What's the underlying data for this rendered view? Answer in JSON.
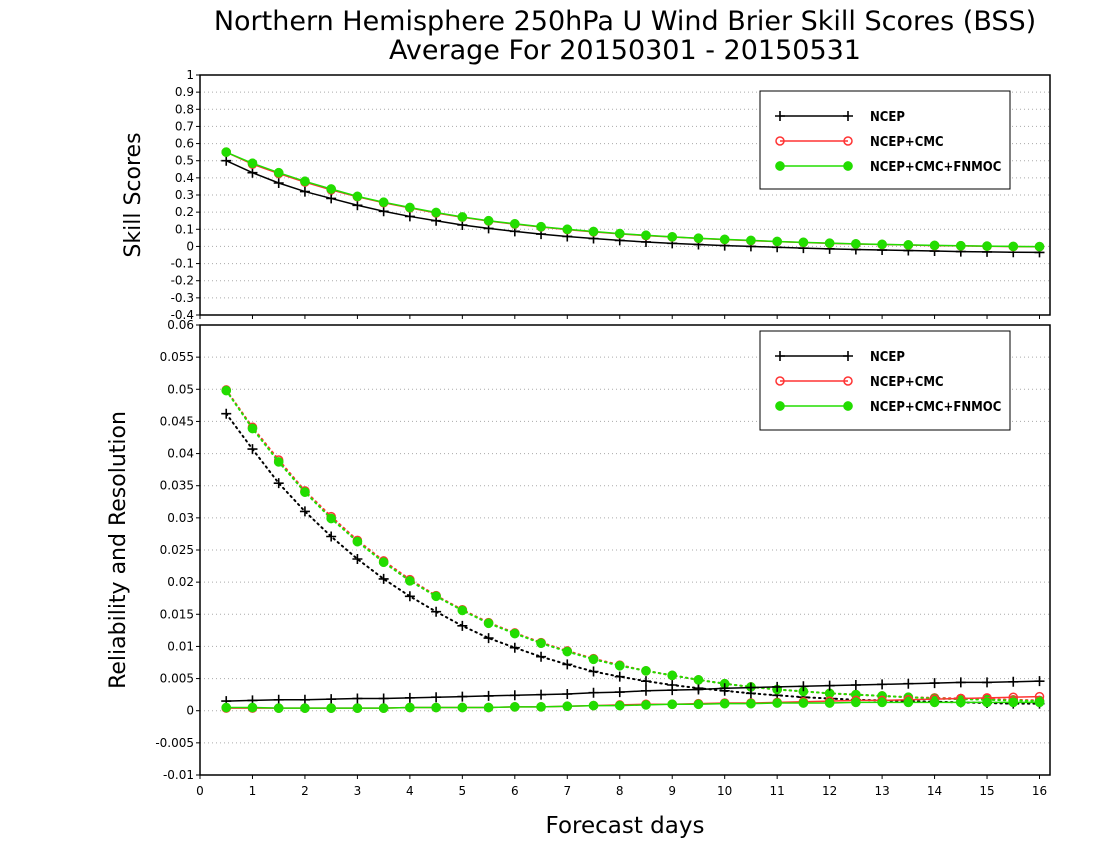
{
  "title": {
    "line1": "Northern Hemisphere 250hPa U Wind Brier Skill Scores (BSS)",
    "line2": "Average For 20150301 - 20150531"
  },
  "colors": {
    "NCEP": "#000000",
    "NCEP+CMC": "#ff3333",
    "NCEP+CMC+FNMOC": "#22dd00"
  },
  "chart_data": [
    {
      "type": "line",
      "ylabel": "Skill Scores",
      "xlabel": "",
      "xlim": [
        0,
        16.2
      ],
      "ylim": [
        -0.4,
        1
      ],
      "yticks": [
        "1",
        "0.9",
        "0.8",
        "0.7",
        "0.6",
        "0.5",
        "0.4",
        "0.3",
        "0.2",
        "0.1",
        "0",
        "-0.1",
        "-0.2",
        "-0.3",
        "-0.4"
      ],
      "grid": "horizontal dotted",
      "legend_position": "top-right",
      "x": [
        0.5,
        1,
        1.5,
        2,
        2.5,
        3,
        3.5,
        4,
        4.5,
        5,
        5.5,
        6,
        6.5,
        7,
        7.5,
        8,
        8.5,
        9,
        9.5,
        10,
        10.5,
        11,
        11.5,
        12,
        12.5,
        13,
        13.5,
        14,
        14.5,
        15,
        15.5,
        16
      ],
      "series": [
        {
          "name": "NCEP",
          "marker": "plus",
          "values": [
            0.5,
            0.43,
            0.37,
            0.32,
            0.28,
            0.24,
            0.205,
            0.175,
            0.15,
            0.125,
            0.105,
            0.088,
            0.072,
            0.058,
            0.046,
            0.035,
            0.026,
            0.018,
            0.011,
            0.005,
            0.0,
            -0.005,
            -0.01,
            -0.014,
            -0.018,
            -0.021,
            -0.024,
            -0.027,
            -0.03,
            -0.032,
            -0.034,
            -0.035
          ]
        },
        {
          "name": "NCEP+CMC",
          "marker": "open-circle",
          "values": [
            0.55,
            0.48,
            0.425,
            0.375,
            0.33,
            0.29,
            0.255,
            0.225,
            0.195,
            0.17,
            0.148,
            0.13,
            0.113,
            0.098,
            0.085,
            0.073,
            0.063,
            0.055,
            0.047,
            0.04,
            0.034,
            0.028,
            0.023,
            0.018,
            0.014,
            0.011,
            0.008,
            0.005,
            0.003,
            0.001,
            -0.001,
            -0.002
          ]
        },
        {
          "name": "NCEP+CMC+FNMOC",
          "marker": "filled-circle",
          "values": [
            0.55,
            0.485,
            0.43,
            0.38,
            0.335,
            0.292,
            0.258,
            0.227,
            0.198,
            0.172,
            0.15,
            0.132,
            0.115,
            0.1,
            0.087,
            0.075,
            0.065,
            0.056,
            0.048,
            0.041,
            0.035,
            0.029,
            0.024,
            0.019,
            0.015,
            0.012,
            0.009,
            0.006,
            0.004,
            0.002,
            0.0,
            -0.001
          ]
        }
      ]
    },
    {
      "type": "line",
      "ylabel": "Reliability and Resolution",
      "xlabel": "Forecast days",
      "xlim": [
        0,
        16.2
      ],
      "ylim": [
        -0.01,
        0.06
      ],
      "yticks": [
        "0.06",
        "0.055",
        "0.05",
        "0.045",
        "0.04",
        "0.035",
        "0.03",
        "0.025",
        "0.02",
        "0.015",
        "0.01",
        "0.005",
        "0",
        "-0.005",
        "-0.01"
      ],
      "xticks": [
        "0",
        "1",
        "2",
        "3",
        "4",
        "5",
        "6",
        "7",
        "8",
        "9",
        "10",
        "11",
        "12",
        "13",
        "14",
        "15",
        "16"
      ],
      "grid": "horizontal dotted",
      "legend_position": "top-right",
      "x": [
        0.5,
        1,
        1.5,
        2,
        2.5,
        3,
        3.5,
        4,
        4.5,
        5,
        5.5,
        6,
        6.5,
        7,
        7.5,
        8,
        8.5,
        9,
        9.5,
        10,
        10.5,
        11,
        11.5,
        12,
        12.5,
        13,
        13.5,
        14,
        14.5,
        15,
        15.5,
        16
      ],
      "series": [
        {
          "name": "NCEP",
          "quantity": "resolution",
          "style": "dotted",
          "marker": "plus",
          "values": [
            0.0462,
            0.0407,
            0.0354,
            0.031,
            0.0271,
            0.0236,
            0.0205,
            0.0178,
            0.0154,
            0.0132,
            0.0113,
            0.0098,
            0.0084,
            0.0072,
            0.0061,
            0.0053,
            0.0046,
            0.004,
            0.0035,
            0.0031,
            0.0027,
            0.0024,
            0.0021,
            0.0019,
            0.0017,
            0.0016,
            0.0015,
            0.0014,
            0.0013,
            0.0012,
            0.0011,
            0.0011
          ]
        },
        {
          "name": "NCEP+CMC",
          "quantity": "resolution",
          "style": "dotted",
          "marker": "open-circle",
          "values": [
            0.0499,
            0.0441,
            0.039,
            0.0342,
            0.0302,
            0.0265,
            0.0233,
            0.0204,
            0.0179,
            0.0157,
            0.0137,
            0.0121,
            0.0106,
            0.0093,
            0.0081,
            0.0071,
            0.0062,
            0.0055,
            0.0048,
            0.0042,
            0.0037,
            0.0033,
            0.003,
            0.0027,
            0.0025,
            0.0023,
            0.0021,
            0.002,
            0.0019,
            0.0018,
            0.0017,
            0.0016
          ]
        },
        {
          "name": "NCEP+CMC+FNMOC",
          "quantity": "resolution",
          "style": "dotted",
          "marker": "filled-circle",
          "values": [
            0.0498,
            0.0439,
            0.0387,
            0.034,
            0.0299,
            0.0263,
            0.0231,
            0.0202,
            0.0178,
            0.0156,
            0.0136,
            0.012,
            0.0105,
            0.0092,
            0.008,
            0.007,
            0.0062,
            0.0055,
            0.0048,
            0.0042,
            0.0037,
            0.0033,
            0.003,
            0.0027,
            0.0025,
            0.0023,
            0.0021,
            0.0019,
            0.0018,
            0.0017,
            0.0016,
            0.0015
          ]
        },
        {
          "name": "NCEP",
          "quantity": "reliability",
          "style": "solid",
          "marker": "plus",
          "values": [
            0.0015,
            0.0016,
            0.0017,
            0.0017,
            0.0018,
            0.0019,
            0.0019,
            0.002,
            0.0021,
            0.0022,
            0.0023,
            0.0024,
            0.0025,
            0.0026,
            0.0028,
            0.0029,
            0.0031,
            0.0032,
            0.0033,
            0.0035,
            0.0036,
            0.0037,
            0.0038,
            0.0039,
            0.004,
            0.0041,
            0.0042,
            0.0043,
            0.0044,
            0.0044,
            0.0045,
            0.0046
          ]
        },
        {
          "name": "NCEP+CMC",
          "quantity": "reliability",
          "style": "solid",
          "marker": "open-circle",
          "values": [
            0.0004,
            0.0004,
            0.0004,
            0.0004,
            0.0004,
            0.0004,
            0.0004,
            0.0005,
            0.0005,
            0.0005,
            0.0005,
            0.0006,
            0.0006,
            0.0007,
            0.0008,
            0.0009,
            0.001,
            0.001,
            0.0011,
            0.0012,
            0.0012,
            0.0013,
            0.0014,
            0.0015,
            0.0016,
            0.0016,
            0.0017,
            0.0018,
            0.0019,
            0.002,
            0.0021,
            0.0022
          ]
        },
        {
          "name": "NCEP+CMC+FNMOC",
          "quantity": "reliability",
          "style": "solid",
          "marker": "filled-circle",
          "values": [
            0.0005,
            0.0005,
            0.0004,
            0.0004,
            0.0004,
            0.0004,
            0.0004,
            0.0005,
            0.0005,
            0.0005,
            0.0005,
            0.0006,
            0.0006,
            0.0007,
            0.0008,
            0.0008,
            0.0009,
            0.001,
            0.001,
            0.0011,
            0.0011,
            0.0012,
            0.0012,
            0.0012,
            0.0013,
            0.0013,
            0.0013,
            0.0013,
            0.0013,
            0.0013,
            0.0013,
            0.0013
          ]
        }
      ]
    }
  ]
}
